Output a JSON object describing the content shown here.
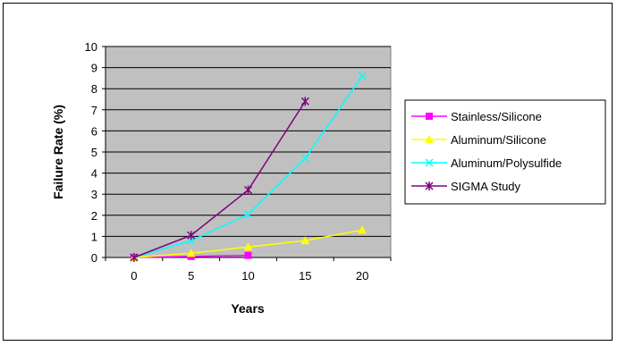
{
  "chart_data": {
    "type": "line",
    "title": "",
    "xlabel": "Years",
    "ylabel": "Failure Rate (%)",
    "ylim": [
      0,
      10
    ],
    "yticks": [
      "0",
      "1",
      "2",
      "3",
      "4",
      "5",
      "6",
      "7",
      "8",
      "9",
      "10"
    ],
    "categories": [
      "0",
      "5",
      "10",
      "15",
      "20"
    ],
    "grid": true,
    "legend_position": "right",
    "plot_background": "#c0c0c0",
    "series": [
      {
        "name": "Stainless/Silicone",
        "color": "#ff00ff",
        "marker": "square",
        "values": [
          0,
          0.05,
          0.1,
          null,
          null
        ]
      },
      {
        "name": "Aluminum/Silicone",
        "color": "#ffff00",
        "marker": "triangle",
        "values": [
          0,
          0.2,
          0.5,
          0.8,
          1.3
        ]
      },
      {
        "name": "Aluminum/Polysulfide",
        "color": "#00ffff",
        "marker": "x",
        "values": [
          0,
          0.8,
          2.05,
          4.7,
          8.6
        ]
      },
      {
        "name": "SIGMA Study",
        "color": "#800080",
        "marker": "star",
        "values": [
          0,
          1.05,
          3.2,
          7.4,
          null
        ]
      }
    ]
  }
}
